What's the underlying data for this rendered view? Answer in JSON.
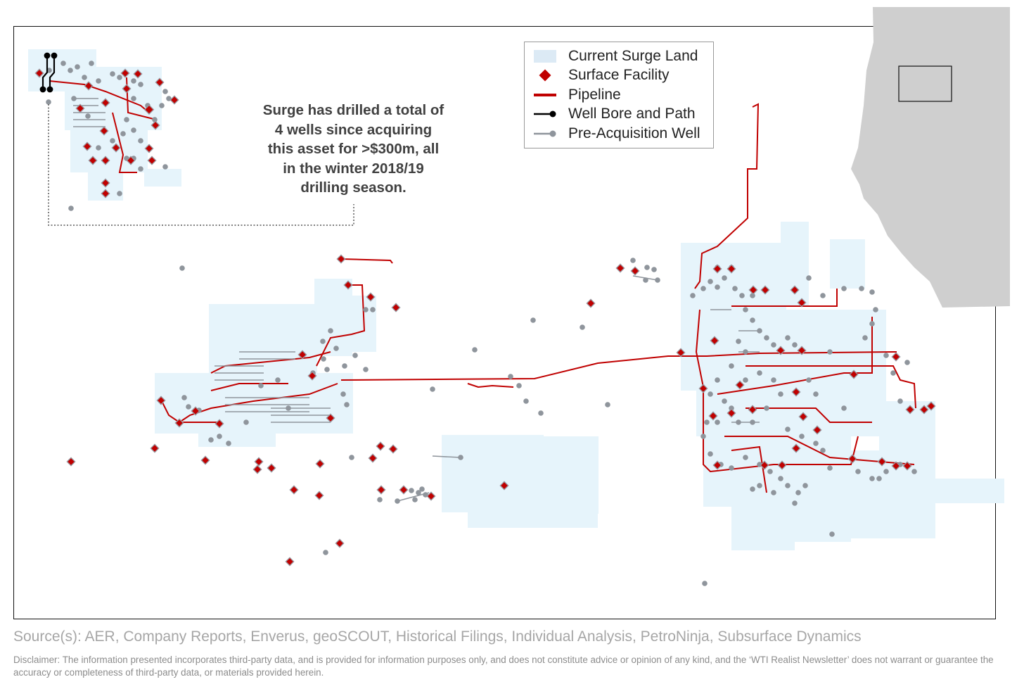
{
  "map": {
    "legend": {
      "items": [
        {
          "label": "Current Surge Land",
          "icon": "land-swatch"
        },
        {
          "label": "Surface Facility",
          "icon": "red-diamond"
        },
        {
          "label": "Pipeline",
          "icon": "red-line"
        },
        {
          "label": "Well Bore and Path",
          "icon": "black-line-dot"
        },
        {
          "label": "Pre-Acquisition Well",
          "icon": "gray-line-dot"
        }
      ]
    },
    "callout": {
      "lines": [
        "Surge has drilled a total of",
        "4 wells since acquiring",
        "this asset for >$300m, all",
        "in the winter 2018/19",
        "drilling season."
      ]
    },
    "colors": {
      "land": "#e6f4fb",
      "facility": "#c00000",
      "pipeline": "#c00000",
      "well_bore": "#000000",
      "pre_acquisition_well": "#8f959c",
      "province_locator": "#cfcfcf"
    }
  },
  "footer": {
    "source": "Source(s): AER, Company Reports, Enverus, geoSCOUT, Historical Filings, Individual Analysis, PetroNinja, Subsurface Dynamics",
    "disclaimer": "Disclaimer: The information presented incorporates third-party data, and is provided for information purposes only, and does not constitute advice or opinion of any kind, and the ‘WTI Realist Newsletter’ does not warrant or guarantee the accuracy or completeness of third-party data, or materials provided herein."
  }
}
